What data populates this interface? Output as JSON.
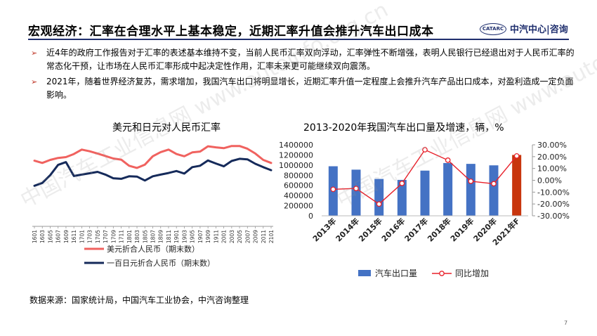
{
  "header": {
    "title": "宏观经济：汇率在合理水平上基本稳定，近期汇率升值会推升汽车出口成本",
    "logo_badge": "CATARC",
    "logo_text": "中汽中心|咨询"
  },
  "bullets": [
    {
      "mark": "➢",
      "text": "近4年的政府工作报告对于汇率的表述基本维持不变，当前人民币汇率双向浮动，汇率弹性不断增强，表明人民银行已经退出对于人民币汇率的常态化干预，让市场在人民币汇率形成中起决定性作用，汇率未来更可能继续双向震荡。"
    },
    {
      "mark": "➢",
      "text": "2021年，随着世界经济复苏，需求增加，我国汽车出口将明显增长，近期汇率升值一定程度上会推升汽车产品出口成本，对盈利造成一定负面影响。"
    }
  ],
  "chart_data": [
    {
      "type": "line",
      "title": "美元和日元对人民币汇率",
      "x": [
        "1601",
        "1603",
        "1605",
        "1607",
        "1609",
        "1611",
        "1701",
        "1703",
        "1705",
        "1707",
        "1709",
        "1711",
        "1801",
        "1803",
        "1805",
        "1807",
        "1809",
        "1811",
        "1901",
        "1903",
        "1905",
        "1907",
        "1909",
        "1911",
        "2001",
        "2003",
        "2005",
        "2007",
        "2009",
        "2011",
        "2101"
      ],
      "series": [
        {
          "name": "美元折合人民币（期末数）",
          "color": "#f0625f",
          "values": [
            6.55,
            6.47,
            6.58,
            6.65,
            6.68,
            6.79,
            6.95,
            6.89,
            6.81,
            6.72,
            6.63,
            6.59,
            6.37,
            6.29,
            6.41,
            6.71,
            6.86,
            6.95,
            6.79,
            6.71,
            6.85,
            6.88,
            7.07,
            7.03,
            7.0,
            7.08,
            7.08,
            6.98,
            6.81,
            6.58,
            6.47
          ]
        },
        {
          "name": "一百日元折合人民币（期末数）",
          "color": "#152a5a",
          "values": [
            5.65,
            5.75,
            6.03,
            6.4,
            6.5,
            6.0,
            6.05,
            6.1,
            6.15,
            6.05,
            5.92,
            5.9,
            5.99,
            5.98,
            5.84,
            5.99,
            6.05,
            6.11,
            6.18,
            6.09,
            6.32,
            6.37,
            6.56,
            6.45,
            6.35,
            6.54,
            6.62,
            6.6,
            6.44,
            6.32,
            6.21
          ]
        }
      ],
      "legend_position": "bottom-left",
      "grid": false
    },
    {
      "type": "bar",
      "title": "2013-2020年我国汽车出口量及增速，辆，%",
      "categories": [
        "2013年",
        "2014年",
        "2015年",
        "2016年",
        "2017年",
        "2018年",
        "2019年",
        "2020年",
        "2021年F"
      ],
      "series": [
        {
          "name": "汽车出口量",
          "type": "bar",
          "axis": "left",
          "color": "#4472c4",
          "highlight_color": "#c8350d",
          "highlight_last": true,
          "values": [
            977000,
            910000,
            727000,
            708000,
            891000,
            1041000,
            1024000,
            995000,
            1200000
          ]
        },
        {
          "name": "同比增加",
          "type": "line",
          "axis": "right",
          "color": "#e8202a",
          "marker": "hollow-circle",
          "values": [
            -7.6,
            -6.9,
            -20.1,
            -2.6,
            25.8,
            17.0,
            -0.8,
            -2.9,
            20.6
          ]
        }
      ],
      "y_left": {
        "ticks": [
          "1400000",
          "1200000",
          "1000000",
          "800000",
          "600000",
          "400000",
          "200000",
          "0"
        ],
        "ylim": [
          0,
          1400000
        ]
      },
      "y_right": {
        "ticks": [
          "30.00%",
          "20.00%",
          "10.00%",
          "0.00%",
          "-10.00%",
          "-20.00%",
          "-30.00%"
        ],
        "ylim": [
          -30,
          30
        ]
      },
      "legend_position": "bottom",
      "grid": false
    }
  ],
  "source": "数据来源：国家统计局，中国汽车工业协会，中汽咨询整理",
  "page_number": "7",
  "watermark": "中国汽车工业信息网 www.autoinfo.org.cn"
}
